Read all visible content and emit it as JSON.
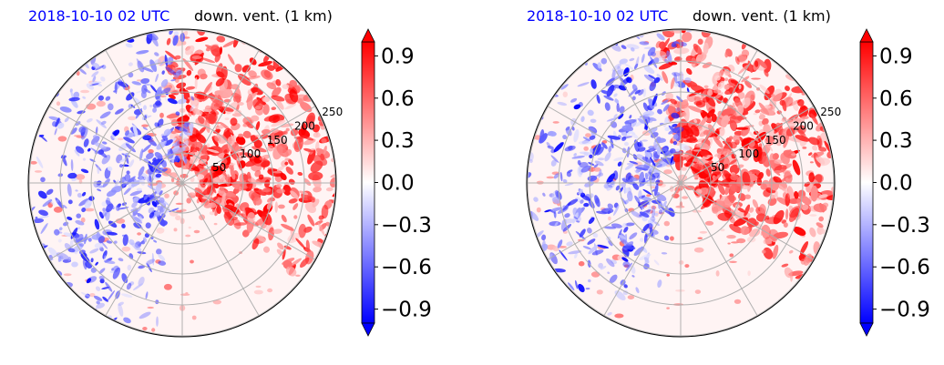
{
  "chart_data": [
    {
      "type": "polar contour map",
      "title_left": "2018-10-10 02 UTC",
      "title_right": "down. vent. (1 km)",
      "range_labels": [
        "50",
        "100",
        "150",
        "200",
        "250"
      ],
      "colorbar": {
        "ticks": [
          "0.9",
          "0.6",
          "0.3",
          "0.0",
          "−0.3",
          "−0.6",
          "−0.9"
        ],
        "range": [
          -1.0,
          1.0
        ],
        "colormap": "bwr",
        "extend": "both"
      },
      "colors": {
        "positive": "#ff0000",
        "negative": "#0000ff",
        "zero": "#ffffff"
      }
    },
    {
      "type": "polar contour map",
      "title_left": "2018-10-10 02 UTC",
      "title_right": "down. vent. (1 km)",
      "range_labels": [
        "50",
        "100",
        "150",
        "200",
        "250"
      ],
      "colorbar": {
        "ticks": [
          "0.9",
          "0.6",
          "0.3",
          "0.0",
          "−0.3",
          "−0.6",
          "−0.9"
        ],
        "range": [
          -1.0,
          1.0
        ],
        "colormap": "bwr",
        "extend": "both"
      },
      "colors": {
        "positive": "#ff0000",
        "negative": "#0000ff",
        "zero": "#ffffff"
      }
    }
  ]
}
